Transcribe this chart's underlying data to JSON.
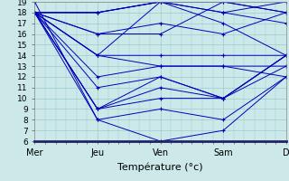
{
  "xlabel": "Température (°c)",
  "xtick_labels": [
    "Mer",
    "Jeu",
    "Ven",
    "Sam",
    "D"
  ],
  "xtick_positions": [
    0,
    24,
    48,
    72,
    96
  ],
  "ylim": [
    6,
    19
  ],
  "yticks": [
    6,
    7,
    8,
    9,
    10,
    11,
    12,
    13,
    14,
    15,
    16,
    17,
    18,
    19
  ],
  "xlim": [
    0,
    96
  ],
  "bg_color": "#cce8e8",
  "grid_color": "#99cccc",
  "line_color": "#0000bb",
  "series": [
    [
      18,
      18,
      19,
      18,
      19
    ],
    [
      18,
      18,
      19,
      19,
      18
    ],
    [
      18,
      18,
      19,
      18,
      17
    ],
    [
      18,
      14,
      19,
      17,
      14
    ],
    [
      18,
      16,
      16,
      19,
      18
    ],
    [
      18,
      16,
      17,
      16,
      18
    ],
    [
      18,
      14,
      14,
      14,
      14
    ],
    [
      18,
      14,
      13,
      13,
      13
    ],
    [
      18,
      12,
      13,
      13,
      12
    ],
    [
      18,
      11,
      12,
      10,
      14
    ],
    [
      18,
      9,
      12,
      10,
      14
    ],
    [
      18,
      9,
      11,
      10,
      14
    ],
    [
      18,
      9,
      10,
      10,
      13
    ],
    [
      18,
      8,
      9,
      8,
      12
    ],
    [
      19,
      8,
      6,
      7,
      12
    ]
  ],
  "x_positions": [
    0,
    24,
    48,
    72,
    96
  ]
}
